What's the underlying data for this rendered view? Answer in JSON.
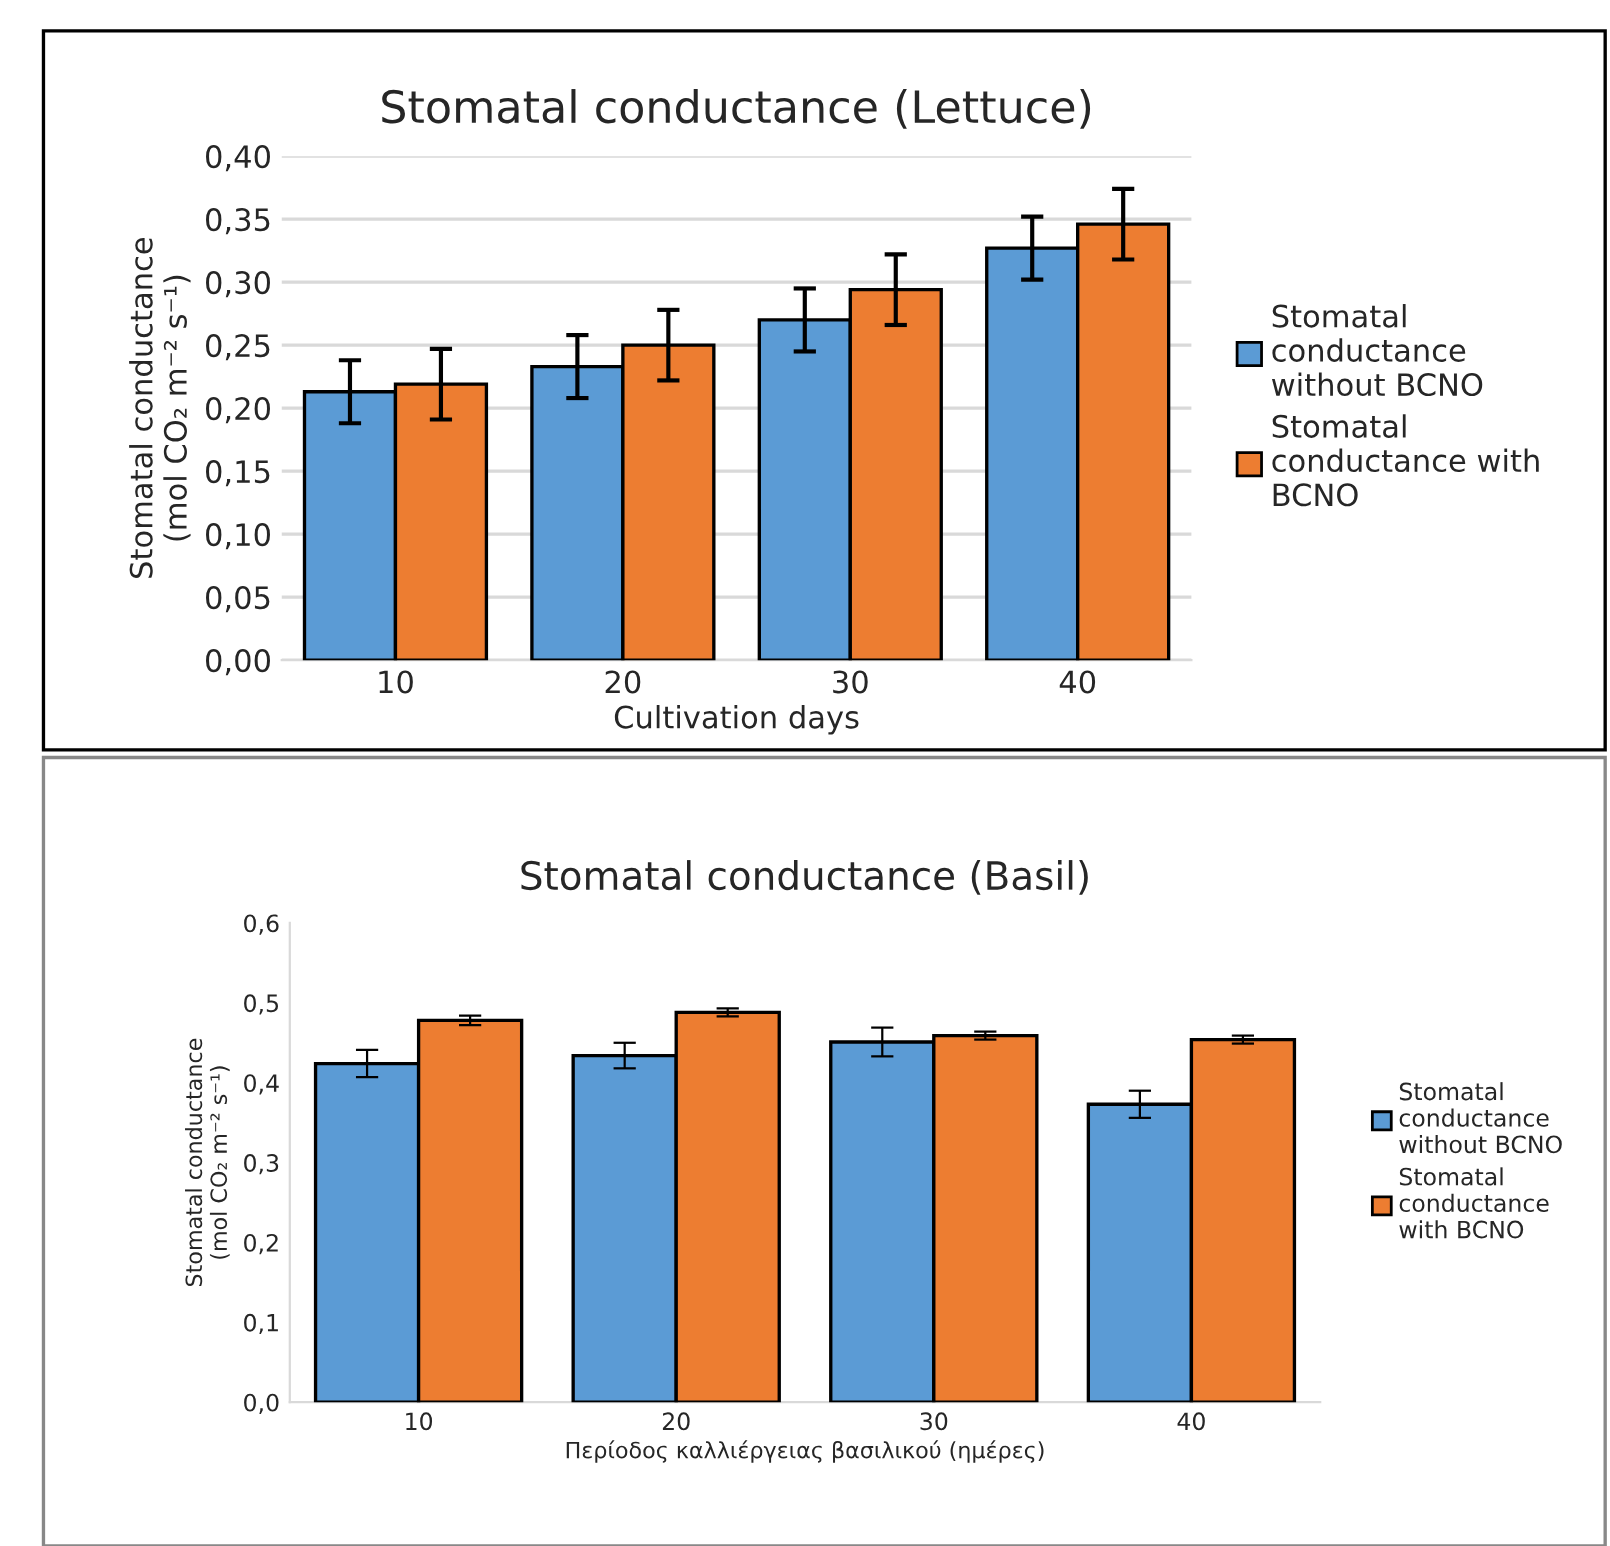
{
  "chart_data": [
    {
      "type": "bar",
      "title": "Stomatal conductance (Lettuce)",
      "xlabel": "Cultivation days",
      "ylabel": "Stomatal conductance\n(mol CO₂ m⁻² s⁻¹)",
      "categories": [
        "10",
        "20",
        "30",
        "40"
      ],
      "series": [
        {
          "name": "Stomatal\nconductance\nwithout BCNO",
          "color": "#5b9bd5",
          "values": [
            0.213,
            0.233,
            0.27,
            0.327
          ],
          "errors": [
            0.025,
            0.025,
            0.025,
            0.025
          ]
        },
        {
          "name": "Stomatal\nconductance with\nBCNO",
          "color": "#ed7d31",
          "values": [
            0.219,
            0.25,
            0.294,
            0.346
          ],
          "errors": [
            0.028,
            0.028,
            0.028,
            0.028
          ]
        }
      ],
      "ylim": [
        0,
        0.4
      ],
      "yticks": [
        {
          "value": 0,
          "label": "0,00"
        },
        {
          "value": 0.05,
          "label": "0,05"
        },
        {
          "value": 0.1,
          "label": "0,10"
        },
        {
          "value": 0.15,
          "label": "0,15"
        },
        {
          "value": 0.2,
          "label": "0,20"
        },
        {
          "value": 0.25,
          "label": "0,25"
        },
        {
          "value": 0.3,
          "label": "0,30"
        },
        {
          "value": 0.35,
          "label": "0,35"
        },
        {
          "value": 0.4,
          "label": "0,40"
        }
      ],
      "grid": "y",
      "legend": "right"
    },
    {
      "type": "bar",
      "title": "Stomatal conductance (Basil)",
      "xlabel": "Περίοδος καλλιέργειας βασιλικού (ημέρες)",
      "ylabel": "Stomatal conductance\n(mol CO₂ m⁻² s⁻¹)",
      "categories": [
        "10",
        "20",
        "30",
        "40"
      ],
      "series": [
        {
          "name": "Stomatal\nconductance\nwithout BCNO",
          "color": "#5b9bd5",
          "values": [
            0.424,
            0.434,
            0.451,
            0.373
          ],
          "errors": [
            0.017,
            0.016,
            0.018,
            0.017
          ]
        },
        {
          "name": "Stomatal\nconductance\nwith BCNO",
          "color": "#ed7d31",
          "values": [
            0.478,
            0.488,
            0.459,
            0.454
          ],
          "errors": [
            0.006,
            0.005,
            0.005,
            0.005
          ]
        }
      ],
      "ylim": [
        0,
        0.6
      ],
      "yticks": [
        {
          "value": 0,
          "label": "0,0"
        },
        {
          "value": 0.1,
          "label": "0,1"
        },
        {
          "value": 0.2,
          "label": "0,2"
        },
        {
          "value": 0.3,
          "label": "0,3"
        },
        {
          "value": 0.4,
          "label": "0,4"
        },
        {
          "value": 0.5,
          "label": "0,5"
        },
        {
          "value": 0.6,
          "label": "0,6"
        }
      ],
      "grid": false,
      "legend": "right"
    }
  ]
}
